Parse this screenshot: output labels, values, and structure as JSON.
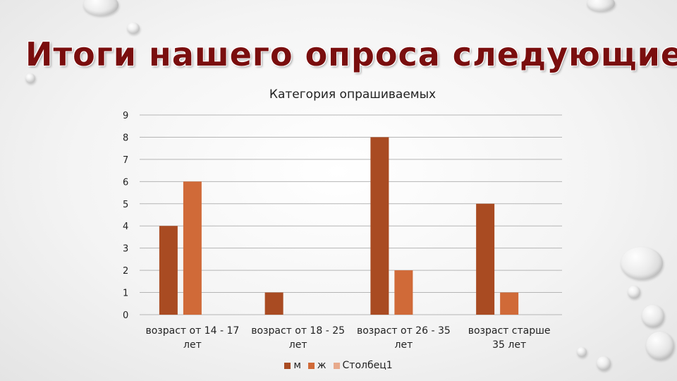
{
  "slide": {
    "title": "Итоги нашего опроса следующие:",
    "title_color": "#7a0e0e"
  },
  "chart_data": {
    "type": "bar",
    "title": "Категория опрашиваемых",
    "categories": [
      [
        "возраст от 14 - 17",
        "лет"
      ],
      [
        "возраст от 18 - 25",
        "лет"
      ],
      [
        "возраст от 26 - 35",
        "лет"
      ],
      [
        "возраст старше",
        "35 лет"
      ]
    ],
    "series": [
      {
        "name": "м",
        "values": [
          4,
          1,
          8,
          5
        ],
        "color": "#a94b22"
      },
      {
        "name": "ж",
        "values": [
          6,
          0,
          2,
          1
        ],
        "color": "#d06a38"
      },
      {
        "name": "Столбец1",
        "values": [
          0,
          0,
          0,
          0
        ],
        "color": "#e8aa8c"
      }
    ],
    "ylim": [
      0,
      9
    ],
    "yticks": [
      "0",
      "1",
      "2",
      "3",
      "4",
      "5",
      "6",
      "7",
      "8",
      "9"
    ],
    "grid": true,
    "legend_position": "bottom"
  }
}
